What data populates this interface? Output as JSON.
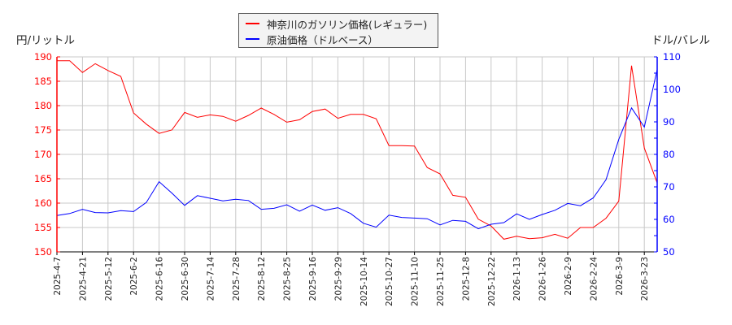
{
  "legend": {
    "items": [
      {
        "label": "神奈川のガソリン価格(レギュラー)",
        "color": "#ff0000"
      },
      {
        "label": "原油価格（ドルベース）",
        "color": "#0000ff"
      }
    ]
  },
  "axes": {
    "left_title": "円/リットル",
    "right_title": "ドル/バレル"
  },
  "chart_data": {
    "type": "line",
    "title": "",
    "xlabel": "",
    "ylabel": "円/リットル",
    "y2label": "ドル/バレル",
    "ylim": [
      150,
      190
    ],
    "y2lim": [
      50,
      110
    ],
    "yticks": [
      150,
      155,
      160,
      165,
      170,
      175,
      180,
      185,
      190
    ],
    "y2ticks": [
      50,
      60,
      70,
      80,
      90,
      100,
      110
    ],
    "grid": true,
    "legend_position": "top-center",
    "xtick_labels": [
      "2025-4-7",
      "2025-4-21",
      "2025-5-12",
      "2025-6-2",
      "2025-6-16",
      "2025-6-30",
      "2025-7-14",
      "2025-7-28",
      "2025-8-12",
      "2025-8-25",
      "2025-9-16",
      "2025-9-29",
      "2025-10-14",
      "2025-10-27",
      "2025-11-10",
      "2025-11-25",
      "2025-12-8",
      "2025-12-22",
      "2026-1-13",
      "2026-1-26",
      "2026-2-9",
      "2026-2-24",
      "2026-3-9",
      "2026-3-23"
    ],
    "series": [
      {
        "name": "神奈川のガソリン価格(レギュラー)",
        "axis": "left",
        "color": "#ff0000",
        "values": [
          189.2,
          189.2,
          186.8,
          188.6,
          187.2,
          186.0,
          178.5,
          176.2,
          174.3,
          175.0,
          178.6,
          177.6,
          178.1,
          177.8,
          176.8,
          178.0,
          179.5,
          178.2,
          176.6,
          177.1,
          178.8,
          179.3,
          177.4,
          178.2,
          178.2,
          177.3,
          171.8,
          171.8,
          171.7,
          167.3,
          166.0,
          161.6,
          161.2,
          156.7,
          155.3,
          152.6,
          153.2,
          152.7,
          152.9,
          153.6,
          152.8,
          155.0,
          155.0,
          156.9,
          160.4,
          188.2,
          171.3,
          164.2
        ]
      },
      {
        "name": "原油価格（ドルベース）",
        "axis": "right",
        "color": "#0000ff",
        "values": [
          61.2,
          61.8,
          63.1,
          62.1,
          62.0,
          62.7,
          62.4,
          65.2,
          71.6,
          68.1,
          64.3,
          67.3,
          66.5,
          65.7,
          66.2,
          65.8,
          63.1,
          63.4,
          64.5,
          62.5,
          64.4,
          62.8,
          63.6,
          61.8,
          58.8,
          57.6,
          61.3,
          60.6,
          60.4,
          60.2,
          58.3,
          59.7,
          59.4,
          57.1,
          58.5,
          59.0,
          61.7,
          60.0,
          61.5,
          62.8,
          64.9,
          64.2,
          66.6,
          72.2,
          84.6,
          94.3,
          88.4,
          106.0
        ]
      }
    ]
  }
}
